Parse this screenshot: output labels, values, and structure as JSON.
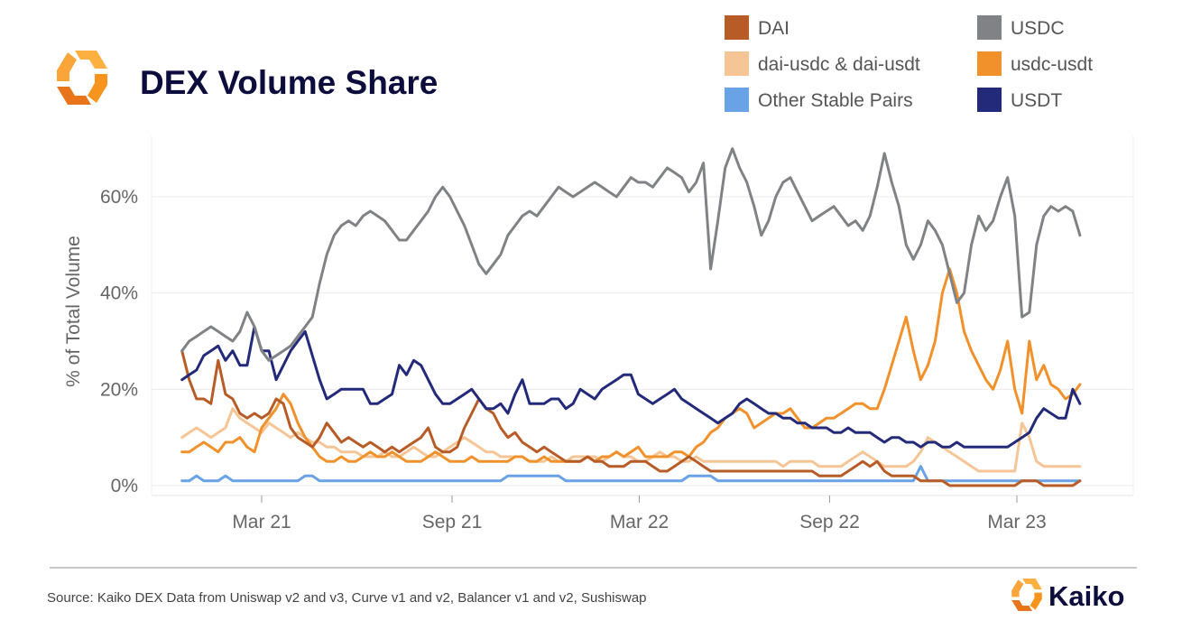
{
  "header": {
    "title": "DEX Volume Share",
    "logo_icon": "kaiko-logo-icon",
    "logo_colors": [
      "#f7941d",
      "#fbb040",
      "#e8741c"
    ]
  },
  "footer": {
    "source": "Source: Kaiko DEX Data from Uniswap v2 and v3, Curve v1 and v2, Balancer v1 and v2, Sushiswap",
    "brand": "Kaiko"
  },
  "chart_data": {
    "type": "line",
    "title": "DEX Volume Share",
    "ylabel": "% of Total Volume",
    "xlabel": "",
    "y_ticks": [
      "0%",
      "20%",
      "40%",
      "60%"
    ],
    "y_tick_values": [
      0,
      20,
      40,
      60
    ],
    "x_ticks": [
      "Mar 21",
      "Sep 21",
      "Mar 22",
      "Sep 22",
      "Mar 23"
    ],
    "x_tick_dates": [
      "2021-03-01",
      "2021-09-01",
      "2022-03-01",
      "2022-09-01",
      "2023-03-01"
    ],
    "x": [
      "2020-12-14",
      "2020-12-21",
      "2020-12-28",
      "2021-01-04",
      "2021-01-11",
      "2021-01-18",
      "2021-01-25",
      "2021-02-01",
      "2021-02-08",
      "2021-02-15",
      "2021-02-22",
      "2021-03-01",
      "2021-03-08",
      "2021-03-15",
      "2021-03-22",
      "2021-03-29",
      "2021-04-05",
      "2021-04-12",
      "2021-04-19",
      "2021-04-26",
      "2021-05-03",
      "2021-05-10",
      "2021-05-17",
      "2021-05-24",
      "2021-05-31",
      "2021-06-07",
      "2021-06-14",
      "2021-06-21",
      "2021-06-28",
      "2021-07-05",
      "2021-07-12",
      "2021-07-19",
      "2021-07-26",
      "2021-08-02",
      "2021-08-09",
      "2021-08-16",
      "2021-08-23",
      "2021-08-30",
      "2021-09-06",
      "2021-09-13",
      "2021-09-20",
      "2021-09-27",
      "2021-10-04",
      "2021-10-11",
      "2021-10-18",
      "2021-10-25",
      "2021-11-01",
      "2021-11-08",
      "2021-11-15",
      "2021-11-22",
      "2021-11-29",
      "2021-12-06",
      "2021-12-13",
      "2021-12-20",
      "2021-12-27",
      "2022-01-03",
      "2022-01-10",
      "2022-01-17",
      "2022-01-24",
      "2022-01-31",
      "2022-02-07",
      "2022-02-14",
      "2022-02-21",
      "2022-02-28",
      "2022-03-07",
      "2022-03-14",
      "2022-03-21",
      "2022-03-28",
      "2022-04-04",
      "2022-04-11",
      "2022-04-18",
      "2022-04-25",
      "2022-05-02",
      "2022-05-09",
      "2022-05-16",
      "2022-05-23",
      "2022-05-30",
      "2022-06-06",
      "2022-06-13",
      "2022-06-20",
      "2022-06-27",
      "2022-07-04",
      "2022-07-11",
      "2022-07-18",
      "2022-07-25",
      "2022-08-01",
      "2022-08-08",
      "2022-08-15",
      "2022-08-22",
      "2022-08-29",
      "2022-09-05",
      "2022-09-12",
      "2022-09-19",
      "2022-09-26",
      "2022-10-03",
      "2022-10-10",
      "2022-10-17",
      "2022-10-24",
      "2022-10-31",
      "2022-11-07",
      "2022-11-14",
      "2022-11-21",
      "2022-11-28",
      "2022-12-05",
      "2022-12-12",
      "2022-12-19",
      "2022-12-26",
      "2023-01-02",
      "2023-01-09",
      "2023-01-16",
      "2023-01-23",
      "2023-01-30",
      "2023-02-06",
      "2023-02-13",
      "2023-02-20",
      "2023-02-27",
      "2023-03-06",
      "2023-03-13",
      "2023-03-20",
      "2023-03-27",
      "2023-04-03",
      "2023-04-10",
      "2023-04-17",
      "2023-04-24",
      "2023-05-01"
    ],
    "legend_position": "top-right",
    "grid": true,
    "series": [
      {
        "name": "DAI",
        "color": "#b85c27",
        "values": [
          28,
          22,
          18,
          18,
          17,
          26,
          19,
          18,
          15,
          14,
          15,
          14,
          15,
          18,
          17,
          12,
          10,
          9,
          8,
          10,
          13,
          11,
          9,
          10,
          9,
          8,
          9,
          8,
          7,
          8,
          7,
          8,
          9,
          10,
          12,
          8,
          7,
          7,
          8,
          12,
          15,
          18,
          16,
          15,
          12,
          10,
          11,
          9,
          8,
          7,
          8,
          7,
          6,
          5,
          5,
          5,
          6,
          5,
          5,
          4,
          4,
          4,
          5,
          5,
          5,
          4,
          3,
          3,
          4,
          5,
          6,
          5,
          4,
          3,
          3,
          3,
          3,
          3,
          3,
          3,
          3,
          3,
          3,
          3,
          3,
          3,
          3,
          3,
          2,
          2,
          2,
          2,
          3,
          4,
          5,
          4,
          5,
          3,
          2,
          2,
          2,
          2,
          1,
          1,
          1,
          1,
          0,
          0,
          0,
          0,
          0,
          0,
          0,
          0,
          0,
          0,
          1,
          1,
          1,
          0,
          0,
          0,
          0,
          0,
          1
        ]
      },
      {
        "name": "USDC",
        "color": "#808285",
        "values": [
          28,
          30,
          31,
          32,
          33,
          32,
          31,
          30,
          32,
          36,
          33,
          28,
          26,
          27,
          28,
          29,
          31,
          33,
          35,
          42,
          48,
          52,
          54,
          55,
          54,
          56,
          57,
          56,
          55,
          53,
          51,
          51,
          53,
          55,
          57,
          60,
          62,
          60,
          57,
          54,
          50,
          46,
          44,
          46,
          48,
          52,
          54,
          56,
          57,
          56,
          58,
          60,
          62,
          61,
          60,
          61,
          62,
          63,
          62,
          61,
          60,
          62,
          64,
          63,
          63,
          62,
          64,
          66,
          65,
          64,
          61,
          63,
          67,
          45,
          55,
          66,
          70,
          66,
          63,
          58,
          52,
          55,
          60,
          63,
          64,
          61,
          58,
          55,
          56,
          57,
          58,
          56,
          54,
          55,
          53,
          56,
          62,
          69,
          63,
          58,
          50,
          47,
          50,
          55,
          53,
          50,
          44,
          38,
          40,
          50,
          56,
          53,
          55,
          60,
          64,
          56,
          35,
          36,
          50,
          56,
          58,
          57,
          58,
          57,
          52
        ]
      },
      {
        "name": "dai-usdc & dai-usdt",
        "color": "#f5c596",
        "values": [
          10,
          11,
          12,
          11,
          10,
          11,
          12,
          16,
          14,
          13,
          12,
          11,
          13,
          12,
          11,
          10,
          11,
          10,
          9,
          9,
          8,
          8,
          7,
          7,
          7,
          6,
          6,
          6,
          7,
          6,
          6,
          7,
          8,
          7,
          6,
          6,
          7,
          8,
          9,
          10,
          9,
          8,
          7,
          7,
          6,
          6,
          6,
          6,
          5,
          5,
          5,
          6,
          5,
          5,
          6,
          6,
          6,
          6,
          5,
          6,
          7,
          6,
          6,
          5,
          5,
          6,
          7,
          6,
          6,
          5,
          5,
          6,
          5,
          5,
          5,
          5,
          5,
          5,
          5,
          5,
          5,
          5,
          5,
          4,
          5,
          5,
          5,
          5,
          4,
          4,
          4,
          4,
          5,
          6,
          7,
          6,
          5,
          4,
          4,
          4,
          4,
          5,
          7,
          10,
          9,
          8,
          7,
          6,
          5,
          4,
          3,
          3,
          3,
          3,
          3,
          3,
          13,
          10,
          5,
          4,
          4,
          4,
          4,
          4,
          4
        ]
      },
      {
        "name": "usdc-usdt",
        "color": "#f1912c",
        "values": [
          7,
          7,
          8,
          9,
          8,
          7,
          9,
          9,
          10,
          8,
          7,
          12,
          14,
          16,
          19,
          17,
          13,
          10,
          8,
          6,
          5,
          5,
          6,
          5,
          5,
          6,
          7,
          6,
          6,
          7,
          6,
          5,
          5,
          5,
          6,
          7,
          6,
          5,
          5,
          5,
          6,
          5,
          5,
          5,
          5,
          5,
          6,
          6,
          5,
          5,
          6,
          5,
          5,
          5,
          5,
          5,
          6,
          5,
          6,
          6,
          7,
          6,
          7,
          8,
          6,
          6,
          6,
          6,
          7,
          7,
          6,
          8,
          9,
          11,
          12,
          14,
          15,
          16,
          15,
          12,
          13,
          14,
          15,
          15,
          16,
          14,
          12,
          12,
          13,
          14,
          14,
          15,
          16,
          17,
          17,
          16,
          16,
          20,
          25,
          30,
          35,
          28,
          22,
          25,
          30,
          40,
          45,
          40,
          32,
          28,
          25,
          22,
          20,
          24,
          30,
          20,
          15,
          30,
          22,
          25,
          21,
          20,
          18,
          19,
          21
        ]
      },
      {
        "name": "Other Stable Pairs",
        "color": "#6aa2e6",
        "values": [
          1,
          1,
          2,
          1,
          1,
          1,
          2,
          1,
          1,
          1,
          1,
          1,
          1,
          1,
          1,
          1,
          1,
          2,
          2,
          1,
          1,
          1,
          1,
          1,
          1,
          1,
          1,
          1,
          1,
          1,
          1,
          1,
          1,
          1,
          1,
          1,
          1,
          1,
          1,
          1,
          1,
          1,
          1,
          1,
          1,
          2,
          2,
          2,
          2,
          2,
          2,
          2,
          2,
          1,
          1,
          1,
          1,
          1,
          1,
          1,
          1,
          1,
          1,
          1,
          1,
          1,
          1,
          1,
          1,
          1,
          2,
          2,
          2,
          2,
          1,
          1,
          1,
          1,
          1,
          1,
          1,
          1,
          1,
          1,
          1,
          1,
          1,
          1,
          1,
          1,
          1,
          1,
          1,
          1,
          1,
          1,
          1,
          1,
          1,
          1,
          1,
          1,
          4,
          1,
          1,
          1,
          1,
          1,
          1,
          1,
          1,
          1,
          1,
          1,
          1,
          1,
          1,
          1,
          1,
          1,
          1,
          1,
          1,
          1,
          1
        ]
      },
      {
        "name": "USDT",
        "color": "#232a7a",
        "values": [
          22,
          23,
          24,
          27,
          28,
          29,
          26,
          28,
          25,
          25,
          33,
          28,
          28,
          22,
          25,
          28,
          30,
          32,
          27,
          22,
          18,
          19,
          20,
          20,
          20,
          20,
          17,
          17,
          18,
          19,
          25,
          23,
          26,
          25,
          22,
          19,
          17,
          17,
          18,
          19,
          20,
          18,
          16,
          16,
          17,
          15,
          19,
          22,
          17,
          17,
          17,
          18,
          18,
          16,
          17,
          20,
          19,
          18,
          20,
          21,
          22,
          23,
          23,
          19,
          18,
          17,
          18,
          19,
          20,
          18,
          17,
          16,
          15,
          14,
          13,
          14,
          15,
          17,
          18,
          17,
          16,
          15,
          15,
          14,
          14,
          13,
          13,
          12,
          12,
          12,
          11,
          11,
          12,
          11,
          11,
          11,
          10,
          9,
          10,
          10,
          9,
          9,
          8,
          9,
          9,
          8,
          8,
          9,
          8,
          8,
          8,
          8,
          8,
          8,
          8,
          9,
          10,
          11,
          14,
          16,
          15,
          14,
          14,
          20,
          17
        ]
      }
    ]
  }
}
